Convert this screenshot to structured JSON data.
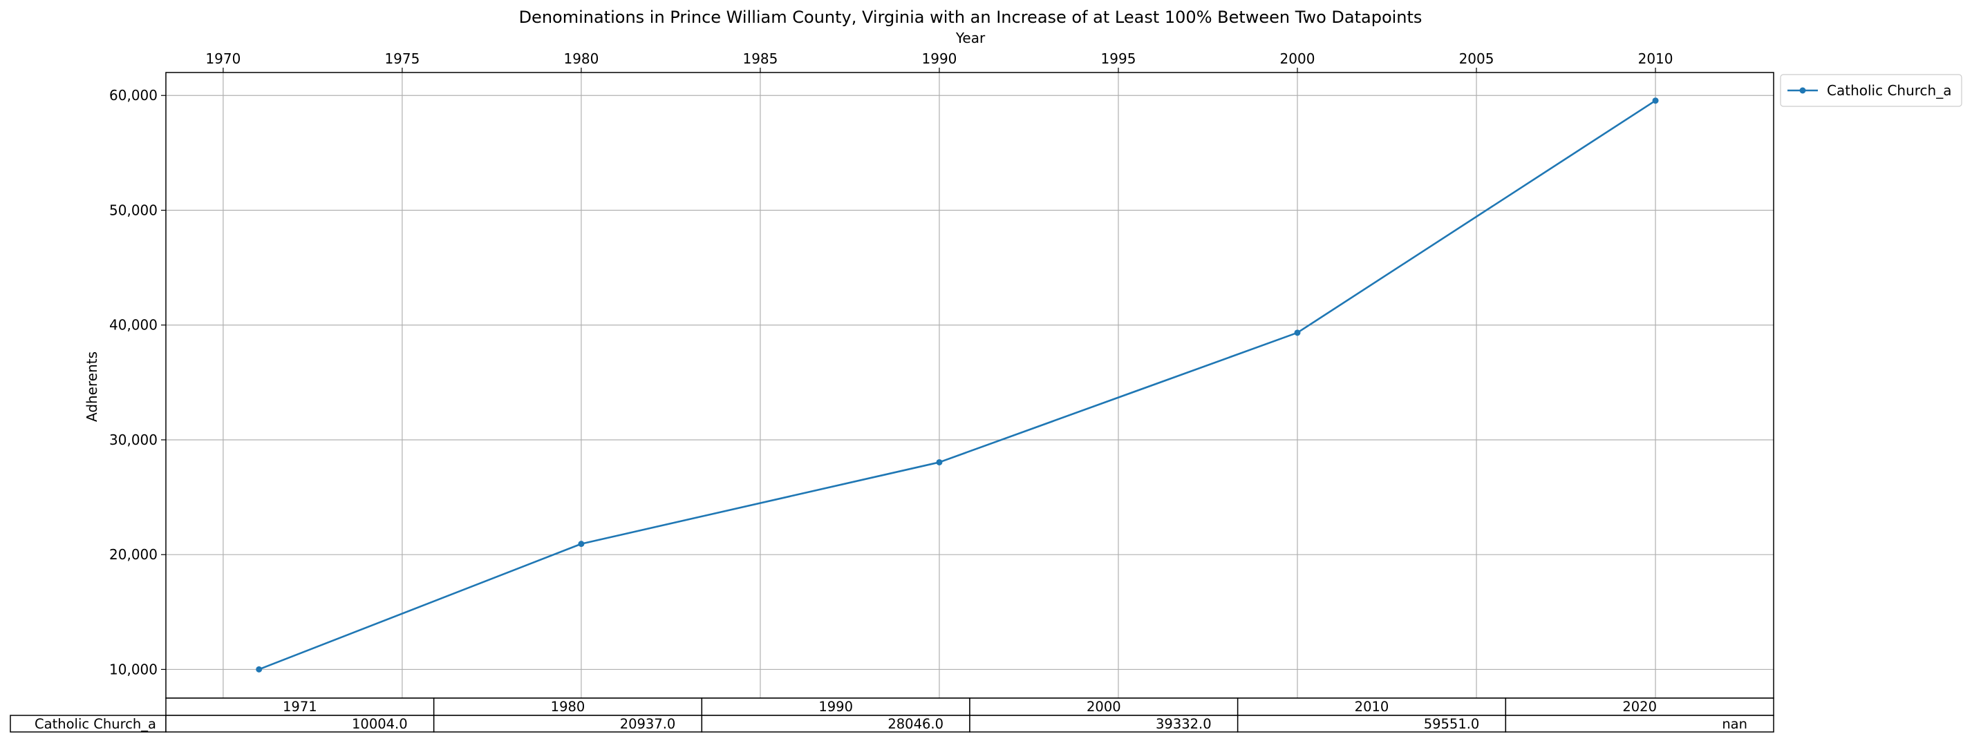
{
  "chart_data": {
    "type": "line",
    "title": "Denominations in Prince William County, Virginia with an Increase of at Least 100% Between Two Datapoints",
    "xlabel": "Year",
    "ylabel": "Adherents",
    "x_axis_position": "top",
    "xlim": [
      1968.4,
      2013.3
    ],
    "ylim": [
      7500,
      62000
    ],
    "x_ticks": [
      1970,
      1975,
      1980,
      1985,
      1990,
      1995,
      2000,
      2005,
      2010
    ],
    "x_tick_labels": [
      "1970",
      "1975",
      "1980",
      "1985",
      "1990",
      "1995",
      "2000",
      "2005",
      "2010"
    ],
    "y_ticks": [
      10000,
      20000,
      30000,
      40000,
      50000,
      60000
    ],
    "y_tick_labels": [
      "10,000",
      "20,000",
      "30,000",
      "40,000",
      "50,000",
      "60,000"
    ],
    "grid": true,
    "legend_position": "outside-top-right",
    "colors": {
      "series": "#1f77b4",
      "grid": "#b0b0b0"
    },
    "series": [
      {
        "name": "Catholic Church_a",
        "x": [
          1971,
          1980,
          1990,
          2000,
          2010
        ],
        "y": [
          10004,
          20937,
          28046,
          39332,
          59551
        ],
        "marker": "dot"
      }
    ],
    "table": {
      "columns": [
        "1971",
        "1980",
        "1990",
        "2000",
        "2010",
        "2020"
      ],
      "rows": [
        {
          "label": "Catholic Church_a",
          "cells": [
            "10004.0",
            "20937.0",
            "28046.0",
            "39332.0",
            "59551.0",
            "nan"
          ]
        }
      ]
    }
  }
}
